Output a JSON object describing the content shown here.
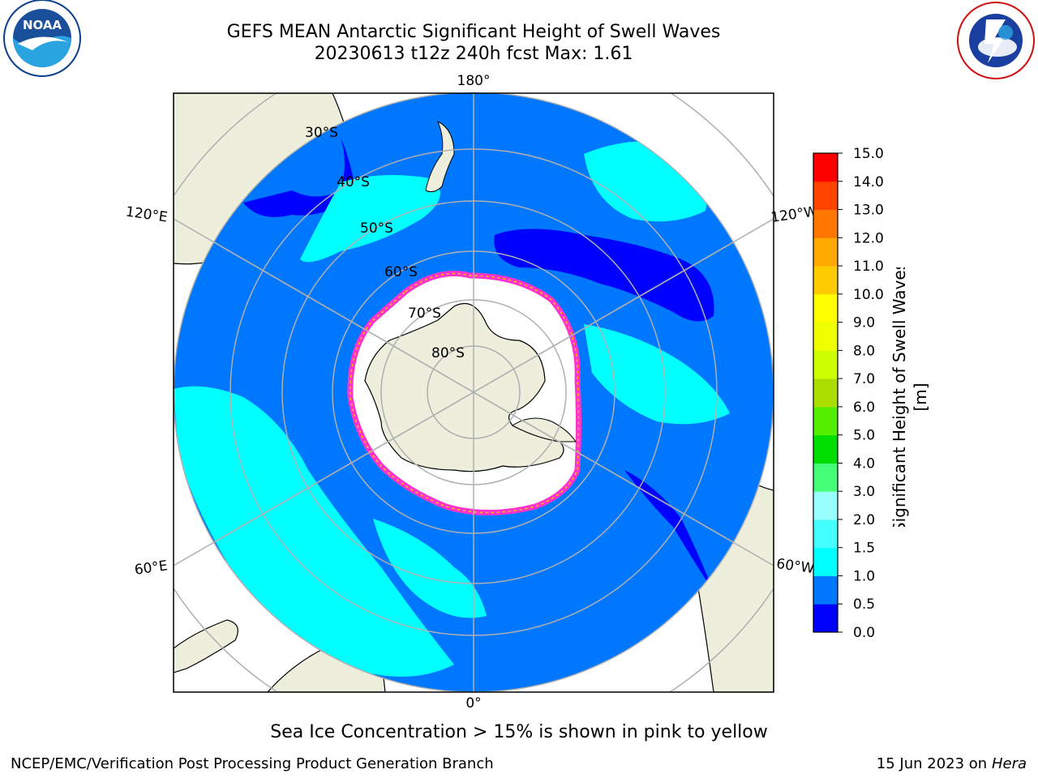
{
  "header": {
    "title_line1": "GEFS MEAN Antarctic Significant Height of Swell Waves",
    "title_line2": "20230613 t12z 240h fcst   Max: 1.61"
  },
  "logos": {
    "noaa_text": "NOAA",
    "noaa_ring_text": "NATIONAL OCEANIC AND ATMOSPHERIC ADMINISTRATION · U.S. DEPARTMENT OF COMMERCE",
    "nws_ring_text": "NATIONAL WEATHER SERVICE"
  },
  "map": {
    "projection": "south polar stereographic",
    "longitude_labels": {
      "top": "180°",
      "bottom": "0°",
      "left_upper": "120°E",
      "left_lower": "60°E",
      "right_upper": "120°W",
      "right_lower": "60°W"
    },
    "latitude_labels": [
      "30°S",
      "40°S",
      "50°S",
      "60°S",
      "70°S",
      "80°S"
    ],
    "colors": {
      "ocean_low": "#0077FF",
      "ocean_lowest": "#0000FF",
      "swell_mid": "#00FFFF",
      "land": "#EEEEDD",
      "ice": "#FFFFFF",
      "ice_edge": "#FF33CC",
      "grid": "#B0B0B0"
    }
  },
  "colorbar": {
    "label": "Significant Height of Swell Waves [m]",
    "ticks": [
      "0.0",
      "0.5",
      "1.0",
      "1.5",
      "2.0",
      "3.0",
      "4.0",
      "5.0",
      "6.0",
      "7.0",
      "8.0",
      "9.0",
      "10.0",
      "11.0",
      "12.0",
      "13.0",
      "14.0",
      "15.0"
    ],
    "colors": [
      "#0000FF",
      "#0077FF",
      "#00FFFF",
      "#44FFFF",
      "#99FFFF",
      "#44FF77",
      "#00DD00",
      "#55EE00",
      "#AADD00",
      "#CCFF00",
      "#EEFF00",
      "#FFFF00",
      "#FFCC00",
      "#FFAA00",
      "#FF7700",
      "#FF4400",
      "#FF0000"
    ]
  },
  "footer": {
    "caption": "Sea Ice Concentration > 15% is shown in pink to yellow",
    "credit": "NCEP/EMC/Verification Post Processing Product Generation Branch",
    "date": "15 Jun 2023 on",
    "host": "Hera"
  }
}
